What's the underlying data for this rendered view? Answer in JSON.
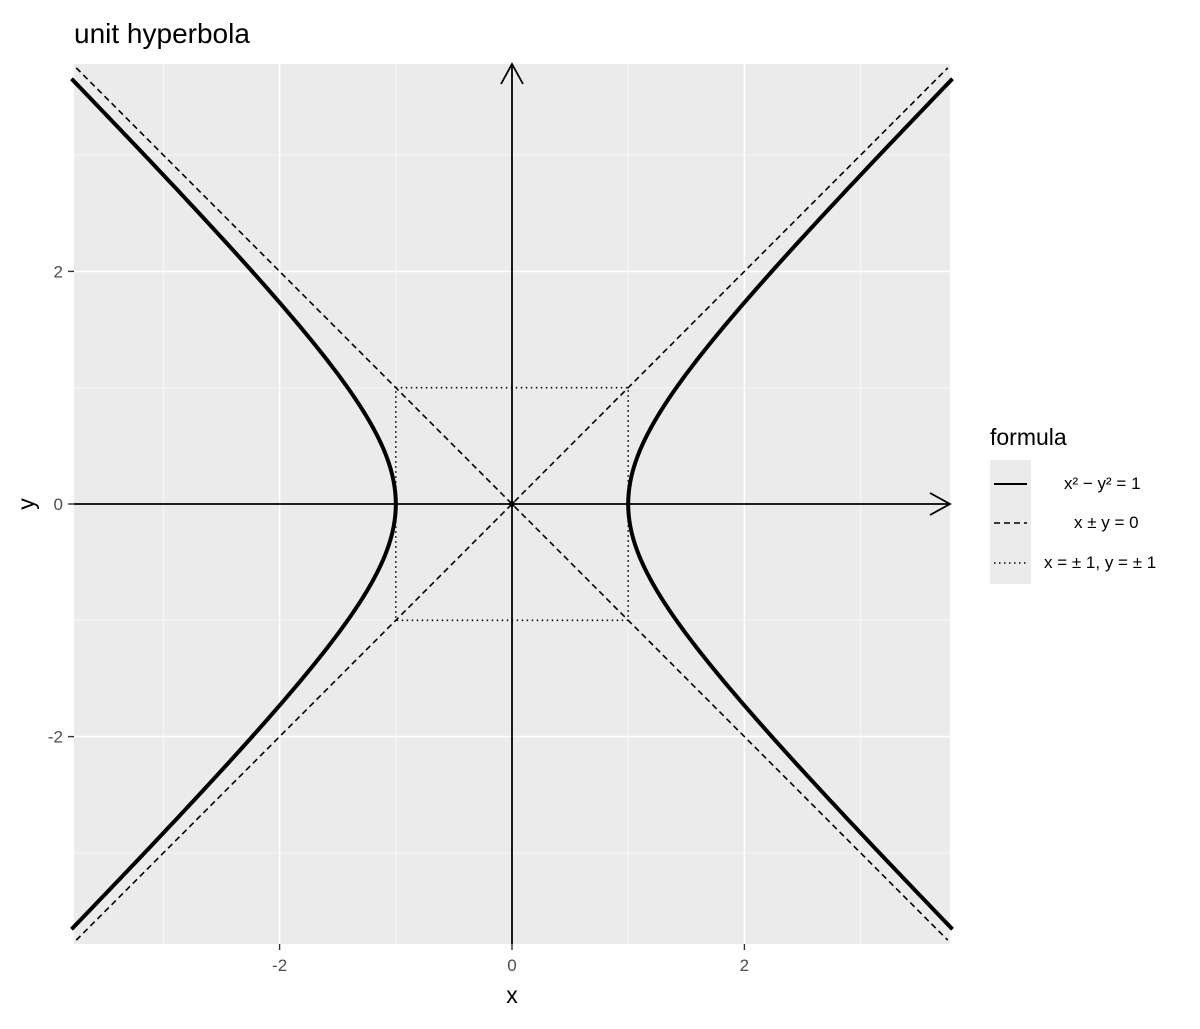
{
  "title": "unit hyperbola",
  "chart_data": {
    "type": "line",
    "title": "unit hyperbola",
    "xlabel": "x",
    "ylabel": "y",
    "xlim": [
      -3.75,
      3.75
    ],
    "ylim": [
      -3.75,
      3.75
    ],
    "x_ticks": [
      -2,
      0,
      2
    ],
    "x_tick_labels": [
      "-2",
      "0",
      "2"
    ],
    "y_ticks": [
      -2,
      0,
      2
    ],
    "y_tick_labels": [
      "-2",
      "0",
      "2"
    ],
    "grid": true,
    "legend_title": "formula",
    "legend_position": "right",
    "series": [
      {
        "name": "x² − y² = 1",
        "linetype": "solid",
        "equation": "x^2 - y^2 = 1"
      },
      {
        "name": "x ± y = 0",
        "linetype": "dashed",
        "equation": "x +/- y = 0"
      },
      {
        "name": "x = ± 1, y = ± 1",
        "linetype": "dotted",
        "equation": "x = +/-1, y = +/-1"
      }
    ],
    "axis_arrows": true
  },
  "legend": {
    "title": "formula",
    "items": [
      {
        "label": "x² − y² = 1"
      },
      {
        "label": "x ± y = 0"
      },
      {
        "label": "x = ± 1, y = ± 1"
      }
    ]
  }
}
